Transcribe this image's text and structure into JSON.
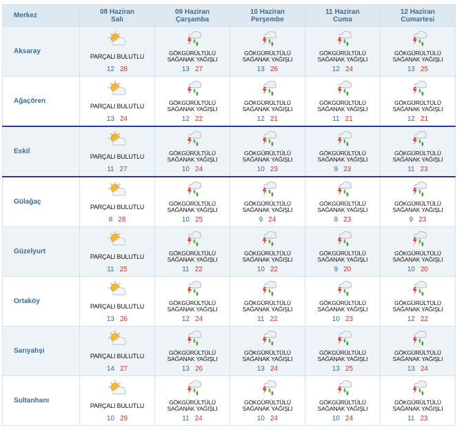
{
  "header": {
    "center_label": "Merkez",
    "days": [
      {
        "date": "08 Haziran",
        "weekday": "Salı"
      },
      {
        "date": "09 Haziran",
        "weekday": "Çarşamba"
      },
      {
        "date": "10 Haziran",
        "weekday": "Perşembe"
      },
      {
        "date": "11 Haziran",
        "weekday": "Cuma"
      },
      {
        "date": "12 Haziran",
        "weekday": "Cumartesi"
      }
    ]
  },
  "conditions": {
    "partly_cloudy": "PARÇALI BULUTLU",
    "thunder_line1": "GÖKGÜRÜLTÜLÜ",
    "thunder_line2": "SAĞANAK YAĞIŞLI"
  },
  "icons": {
    "partly_cloudy": "sun-behind-cloud-icon",
    "thunder": "thunder-rain-cloud-icon"
  },
  "colors": {
    "header_bg": "#dde8f1",
    "row_shade": "#eef3f8",
    "station_text": "#3c6d93",
    "min_temp": "#2f6aa5",
    "max_temp": "#c8362b",
    "highlight_border": "#2a3b8f"
  },
  "rows": [
    {
      "name": "Aksaray",
      "shade": true,
      "highlight": false,
      "days": [
        {
          "type": "partly_cloudy",
          "min": "12",
          "max": "28"
        },
        {
          "type": "thunder",
          "min": "13",
          "max": "27"
        },
        {
          "type": "thunder",
          "min": "13",
          "max": "26"
        },
        {
          "type": "thunder",
          "min": "12",
          "max": "24"
        },
        {
          "type": "thunder",
          "min": "13",
          "max": "25"
        }
      ]
    },
    {
      "name": "Ağaçören",
      "shade": false,
      "highlight": false,
      "days": [
        {
          "type": "partly_cloudy",
          "min": "13",
          "max": "24"
        },
        {
          "type": "thunder",
          "min": "12",
          "max": "22"
        },
        {
          "type": "thunder",
          "min": "12",
          "max": "21"
        },
        {
          "type": "thunder",
          "min": "11",
          "max": "21"
        },
        {
          "type": "thunder",
          "min": "12",
          "max": "21"
        }
      ]
    },
    {
      "name": "Eskil",
      "shade": true,
      "highlight": true,
      "days": [
        {
          "type": "partly_cloudy",
          "min": "11",
          "max": "27"
        },
        {
          "type": "thunder",
          "min": "10",
          "max": "24"
        },
        {
          "type": "thunder",
          "min": "10",
          "max": "23"
        },
        {
          "type": "thunder",
          "min": "9",
          "max": "23"
        },
        {
          "type": "thunder",
          "min": "11",
          "max": "23"
        }
      ]
    },
    {
      "name": "Gülağaç",
      "shade": false,
      "highlight": false,
      "days": [
        {
          "type": "partly_cloudy",
          "min": "8",
          "max": "28"
        },
        {
          "type": "thunder",
          "min": "10",
          "max": "25"
        },
        {
          "type": "thunder",
          "min": "9",
          "max": "24"
        },
        {
          "type": "thunder",
          "min": "8",
          "max": "23"
        },
        {
          "type": "thunder",
          "min": "9",
          "max": "23"
        }
      ]
    },
    {
      "name": "Güzelyurt",
      "shade": true,
      "highlight": false,
      "days": [
        {
          "type": "partly_cloudy",
          "min": "11",
          "max": "25"
        },
        {
          "type": "thunder",
          "min": "11",
          "max": "22"
        },
        {
          "type": "thunder",
          "min": "10",
          "max": "22"
        },
        {
          "type": "thunder",
          "min": "9",
          "max": "20"
        },
        {
          "type": "thunder",
          "min": "10",
          "max": "20"
        }
      ]
    },
    {
      "name": "Ortaköy",
      "shade": false,
      "highlight": false,
      "days": [
        {
          "type": "partly_cloudy",
          "min": "13",
          "max": "26"
        },
        {
          "type": "thunder",
          "min": "12",
          "max": "24"
        },
        {
          "type": "thunder",
          "min": "11",
          "max": "22"
        },
        {
          "type": "thunder",
          "min": "10",
          "max": "23"
        },
        {
          "type": "thunder",
          "min": "12",
          "max": "22"
        }
      ]
    },
    {
      "name": "Sarıyahşi",
      "shade": true,
      "highlight": false,
      "days": [
        {
          "type": "partly_cloudy",
          "min": "14",
          "max": "27"
        },
        {
          "type": "thunder",
          "min": "13",
          "max": "26"
        },
        {
          "type": "thunder",
          "min": "13",
          "max": "24"
        },
        {
          "type": "thunder",
          "min": "13",
          "max": "25"
        },
        {
          "type": "thunder",
          "min": "13",
          "max": "24"
        }
      ]
    },
    {
      "name": "Sultanhanı",
      "shade": false,
      "highlight": false,
      "days": [
        {
          "type": "partly_cloudy",
          "min": "10",
          "max": "29"
        },
        {
          "type": "thunder",
          "min": "11",
          "max": "24"
        },
        {
          "type": "thunder",
          "min": "10",
          "max": "24"
        },
        {
          "type": "thunder",
          "min": "10",
          "max": "24"
        },
        {
          "type": "thunder",
          "min": "11",
          "max": "23"
        }
      ]
    }
  ]
}
